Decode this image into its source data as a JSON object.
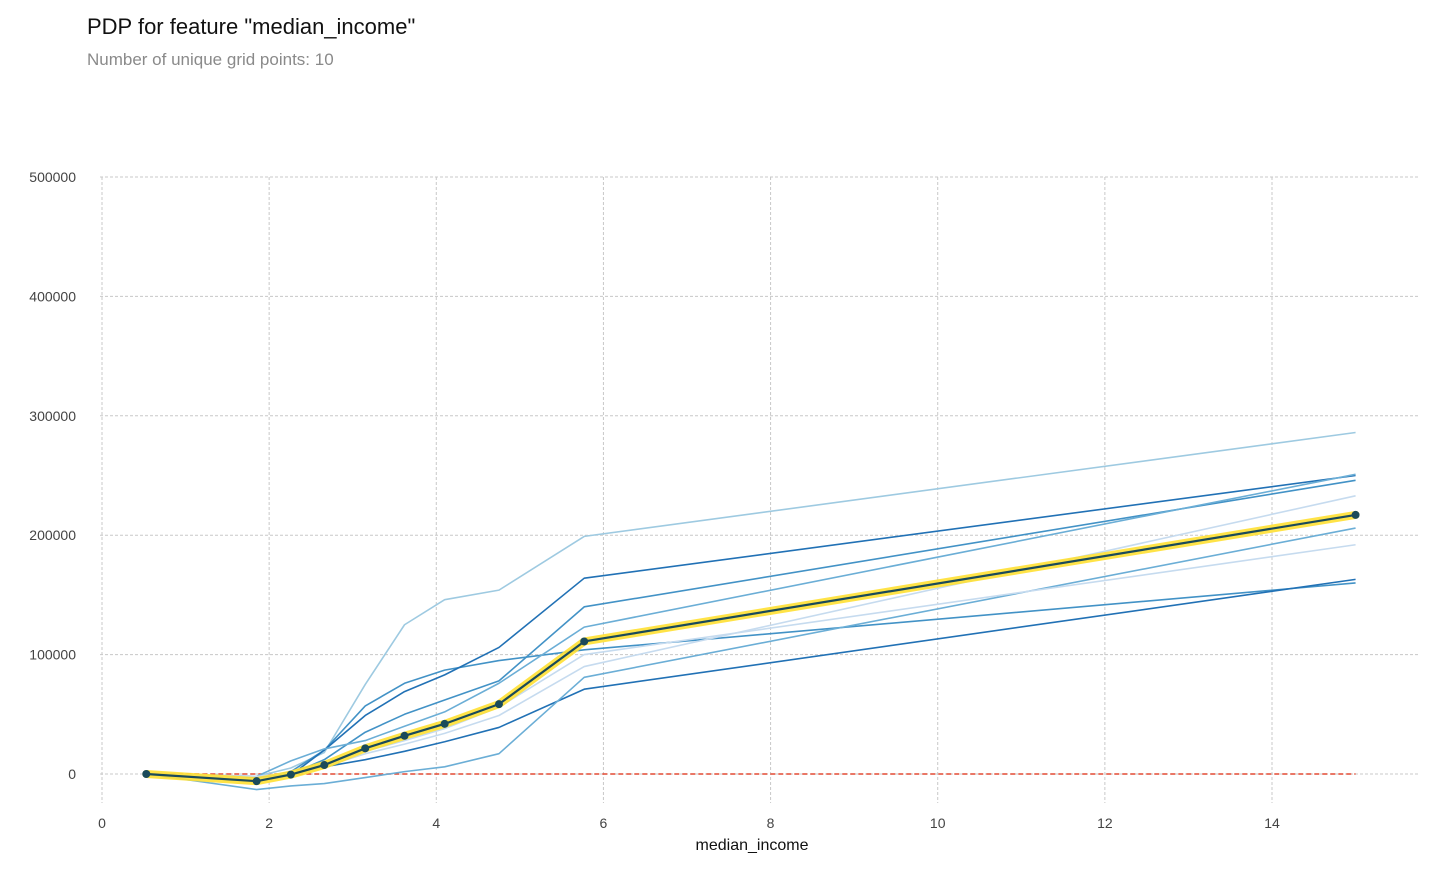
{
  "title": "PDP for feature \"median_income\"",
  "subtitle": "Number of unique grid points: 10",
  "colors": {
    "ice_lines": [
      "#9ecae1",
      "#4292c6",
      "#2171b5",
      "#6baed6",
      "#c6dbef"
    ],
    "pdp_line": "#1a4a5a",
    "pdp_band": "#ffe033",
    "zero_line": "#e34a33",
    "grid": "#c8c8c8"
  },
  "chart_data": {
    "type": "line",
    "xlabel": "median_income",
    "ylabel": "",
    "xlim": [
      -0.3,
      15.5
    ],
    "ylim": [
      -40000,
      510000
    ],
    "xticks": [
      0,
      2,
      4,
      6,
      8,
      10,
      12,
      14
    ],
    "yticks": [
      0,
      100000,
      200000,
      300000,
      400000,
      500000
    ],
    "grid": true,
    "x": [
      0.53,
      1.85,
      2.26,
      2.66,
      3.15,
      3.62,
      4.1,
      4.75,
      5.77,
      15.0
    ],
    "pdp": {
      "name": "pdp",
      "values": [
        0,
        -6000,
        -500,
        7500,
        21500,
        32000,
        42000,
        58500,
        111000,
        217000
      ]
    },
    "zero_line": 0,
    "ice_lines": [
      {
        "color_index": 0,
        "values": [
          0,
          -2000,
          5000,
          18000,
          75000,
          125000,
          146000,
          154000,
          199000,
          286000
        ]
      },
      {
        "color_index": 1,
        "values": [
          0,
          -4000,
          2000,
          20000,
          57000,
          76000,
          87000,
          95000,
          104000,
          160000
        ]
      },
      {
        "color_index": 1,
        "values": [
          0,
          -5000,
          0,
          12000,
          35000,
          50000,
          62000,
          78000,
          140000,
          246000
        ]
      },
      {
        "color_index": 2,
        "values": [
          0,
          -3000,
          1000,
          6000,
          12000,
          19000,
          27000,
          39000,
          71000,
          163000
        ]
      },
      {
        "color_index": 2,
        "values": [
          0,
          -6000,
          -1000,
          20000,
          49000,
          69000,
          83000,
          106000,
          164000,
          250000
        ]
      },
      {
        "color_index": 3,
        "values": [
          0,
          -13000,
          -10000,
          -8000,
          -3000,
          2000,
          6000,
          17000,
          81000,
          206000
        ]
      },
      {
        "color_index": 3,
        "values": [
          0,
          -2000,
          11000,
          21000,
          28000,
          40000,
          52000,
          76000,
          123000,
          251000
        ]
      },
      {
        "color_index": 4,
        "values": [
          0,
          -4000,
          -1000,
          6000,
          17000,
          25000,
          34000,
          49000,
          90000,
          233000
        ]
      },
      {
        "color_index": 4,
        "values": [
          0,
          -2000,
          1000,
          9000,
          19000,
          28000,
          38000,
          56000,
          100000,
          192000
        ]
      }
    ]
  }
}
